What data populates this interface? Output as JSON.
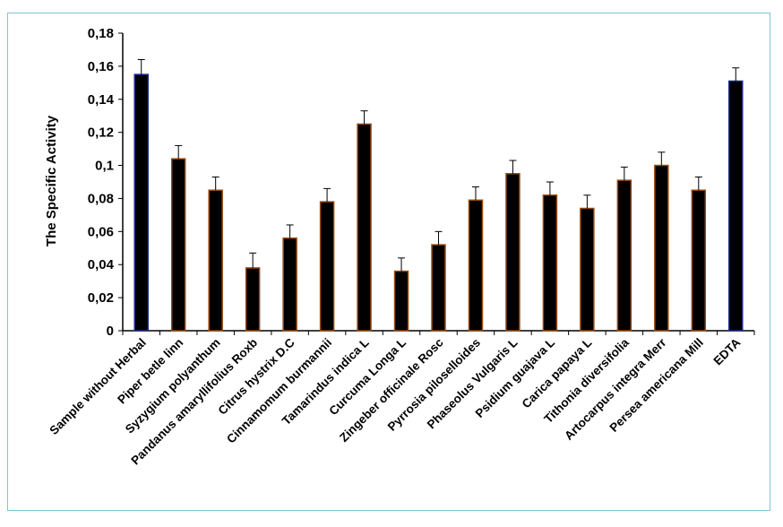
{
  "chart_data": {
    "type": "bar",
    "title": "",
    "xlabel": "",
    "ylabel": "The Specific Activity",
    "ylim": [
      0,
      0.18
    ],
    "yticks": [
      "0",
      "0,02",
      "0,04",
      "0,06",
      "0,08",
      "0,1",
      "0,12",
      "0,14",
      "0,16",
      "0,18"
    ],
    "ytick_values": [
      0,
      0.02,
      0.04,
      0.06,
      0.08,
      0.1,
      0.12,
      0.14,
      0.16,
      0.18
    ],
    "categories": [
      "Sample without Herbal",
      "Piper betle linn",
      "Syzygium polyanthum",
      "Pandanus amaryllifolius Roxb",
      "Citrus hystrix D.C",
      "Cinnamomum burmannii",
      "Tamarindus indica L",
      "Curcuma Longa L",
      "Zingeber officinale Rosc",
      "Pyrrosia piloselloides",
      "Phaseolus Vulgaris L",
      "Psidium guajava L",
      "Carica papaya L",
      "Tithonia diversifolia",
      "Artocarpus integra Merr",
      "Persea americana Mill",
      "EDTA"
    ],
    "values": [
      0.155,
      0.104,
      0.085,
      0.038,
      0.056,
      0.078,
      0.125,
      0.036,
      0.052,
      0.079,
      0.095,
      0.082,
      0.074,
      0.091,
      0.1,
      0.085,
      0.151
    ],
    "errors": [
      0.009,
      0.008,
      0.008,
      0.009,
      0.008,
      0.008,
      0.008,
      0.008,
      0.008,
      0.008,
      0.008,
      0.008,
      0.008,
      0.008,
      0.008,
      0.008,
      0.008
    ],
    "grid": false,
    "legend": "none",
    "colors": {
      "bar_fill": "#000000",
      "bar_edge": "#9a4a10",
      "first_last_edge": "#1a2a8a"
    }
  }
}
